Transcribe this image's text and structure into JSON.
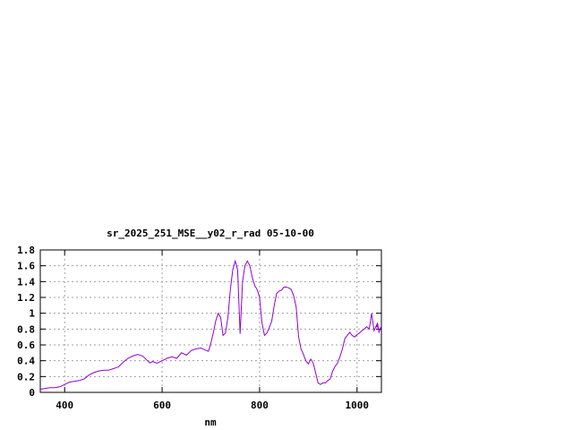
{
  "chart_data": {
    "type": "line",
    "title": "sr_2025_251_MSE__y02_r_rad 05-10-00",
    "xlabel": "nm",
    "ylabel": "",
    "xlim": [
      350,
      1050
    ],
    "ylim": [
      0,
      1.8
    ],
    "x_ticks": [
      400,
      600,
      800,
      1000
    ],
    "x_tick_labels": [
      "400",
      "600",
      "800",
      "1000"
    ],
    "y_ticks": [
      0,
      0.2,
      0.4,
      0.6,
      0.8,
      1,
      1.2,
      1.4,
      1.6,
      1.8
    ],
    "y_tick_labels": [
      "0",
      "0.2",
      "0.4",
      "0.6",
      "0.8",
      "1",
      "1.2",
      "1.4",
      "1.6",
      "1.8"
    ],
    "grid": true,
    "line_color": "#9400d3",
    "series": [
      {
        "x": [
          350,
          360,
          370,
          380,
          390,
          400,
          410,
          420,
          430,
          440,
          450,
          460,
          470,
          480,
          490,
          500,
          510,
          520,
          530,
          540,
          550,
          560,
          570,
          575,
          580,
          590,
          600,
          610,
          620,
          630,
          640,
          650,
          660,
          670,
          680,
          690,
          695,
          700,
          705,
          710,
          715,
          720,
          725,
          730,
          735,
          740,
          745,
          750,
          755,
          760,
          765,
          770,
          775,
          780,
          785,
          790,
          795,
          800,
          805,
          810,
          815,
          820,
          825,
          830,
          835,
          840,
          845,
          850,
          855,
          860,
          865,
          870,
          875,
          880,
          885,
          890,
          895,
          900,
          905,
          910,
          915,
          920,
          925,
          930,
          935,
          940,
          945,
          950,
          955,
          960,
          965,
          970,
          975,
          980,
          985,
          990,
          995,
          1000,
          1005,
          1010,
          1015,
          1020,
          1025,
          1030,
          1035,
          1040,
          1041,
          1042,
          1045,
          1050
        ],
        "y": [
          0.04,
          0.05,
          0.06,
          0.06,
          0.07,
          0.1,
          0.13,
          0.14,
          0.15,
          0.17,
          0.22,
          0.25,
          0.27,
          0.28,
          0.28,
          0.3,
          0.32,
          0.38,
          0.43,
          0.46,
          0.48,
          0.46,
          0.4,
          0.37,
          0.39,
          0.37,
          0.4,
          0.43,
          0.45,
          0.43,
          0.5,
          0.47,
          0.53,
          0.55,
          0.56,
          0.53,
          0.52,
          0.62,
          0.75,
          0.9,
          1.0,
          0.95,
          0.72,
          0.75,
          0.95,
          1.3,
          1.55,
          1.66,
          1.55,
          0.74,
          1.4,
          1.6,
          1.66,
          1.6,
          1.45,
          1.35,
          1.3,
          1.2,
          0.88,
          0.72,
          0.75,
          0.82,
          0.9,
          1.1,
          1.25,
          1.28,
          1.29,
          1.33,
          1.33,
          1.32,
          1.3,
          1.22,
          1.08,
          0.7,
          0.55,
          0.48,
          0.4,
          0.36,
          0.42,
          0.37,
          0.25,
          0.12,
          0.1,
          0.12,
          0.12,
          0.15,
          0.17,
          0.27,
          0.33,
          0.37,
          0.45,
          0.55,
          0.68,
          0.72,
          0.76,
          0.72,
          0.7,
          0.73,
          0.75,
          0.78,
          0.8,
          0.83,
          0.8,
          1.0,
          0.78,
          0.85,
          0.82,
          0.88,
          0.76,
          0.84
        ]
      }
    ]
  }
}
